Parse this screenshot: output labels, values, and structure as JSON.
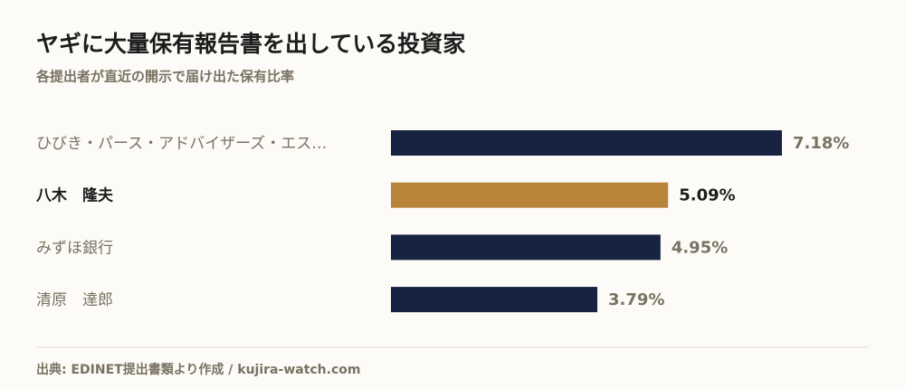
{
  "chart_data": {
    "type": "hbar",
    "title": "ヤギに大量保有報告書を出している投資家",
    "subtitle": "各提出者が直近の開示で届け出た保有比率",
    "categories": [
      "ひびき・パース・アドバイザーズ・エス…",
      "八木　隆夫",
      "みずほ銀行",
      "清原　達郎"
    ],
    "values": [
      7.18,
      5.09,
      4.95,
      3.79
    ],
    "value_labels": [
      "7.18%",
      "5.09%",
      "4.95%",
      "3.79%"
    ],
    "color": "#172340",
    "highlight_index": 1,
    "highlight_color": "#b8843a",
    "source": "出典: EDINET提出書類より作成 / kujira-watch.com"
  }
}
